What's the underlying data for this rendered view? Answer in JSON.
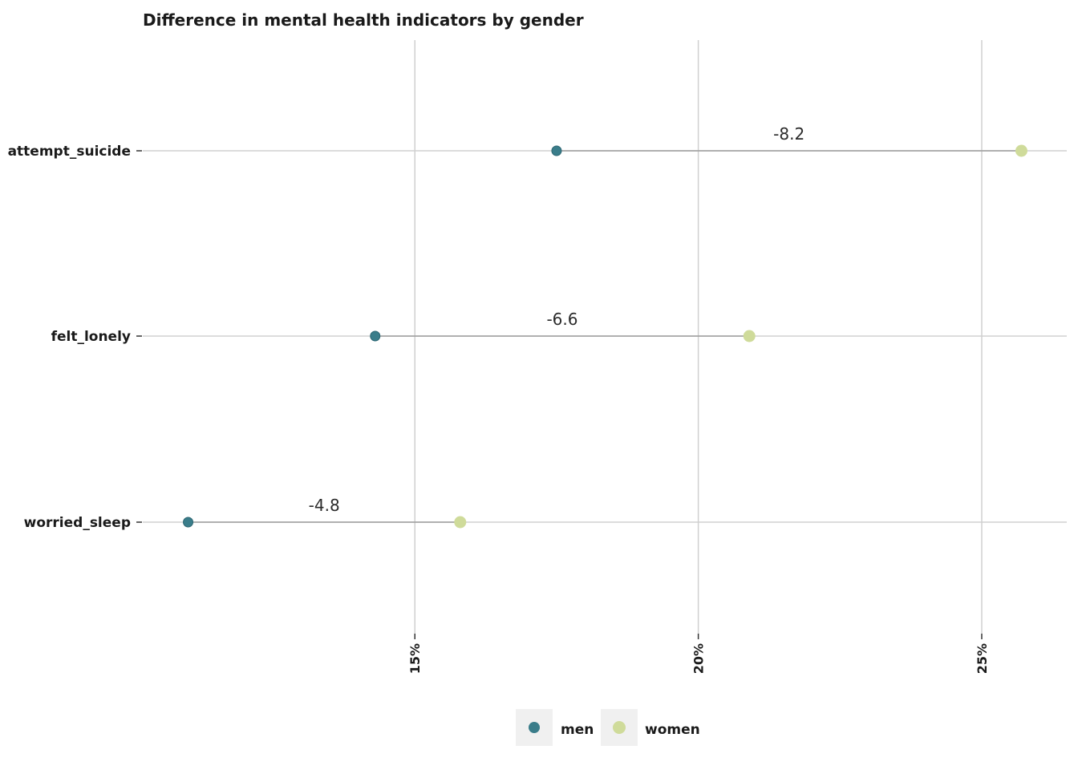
{
  "chart_data": {
    "type": "dumbbell",
    "title": "Difference in mental health indicators by gender",
    "xlabel": "",
    "ylabel": "",
    "categories": [
      "attempt_suicide",
      "felt_lonely",
      "worried_sleep"
    ],
    "series": [
      {
        "name": "men",
        "color": "#3a7d8a",
        "values": [
          17.5,
          14.3,
          11.0
        ]
      },
      {
        "name": "women",
        "color": "#cfdb9a",
        "values": [
          25.7,
          20.9,
          15.8
        ]
      }
    ],
    "differences": [
      "-8.2",
      "-6.6",
      "-4.8"
    ],
    "xlim": [
      10.2,
      26.5
    ],
    "x_ticks": [
      15,
      20,
      25
    ],
    "x_tick_labels": [
      "15%",
      "20%",
      "25%"
    ],
    "grid": true,
    "legend_position": "bottom",
    "colors": {
      "men": "#3a7d8a",
      "women": "#cfdb9a",
      "connector": "#9e9e9e",
      "grid": "#d0d0d0",
      "legend_key_bg": "#f0f0f0"
    }
  }
}
